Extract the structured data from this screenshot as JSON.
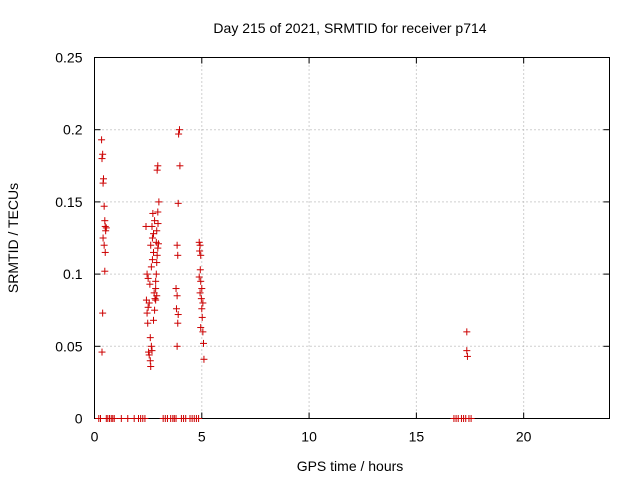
{
  "chart_data": {
    "type": "scatter",
    "title": "Day 215 of 2021, SRMTID for receiver p714",
    "xlabel": "GPS time / hours",
    "ylabel": "SRMTID / TECUs",
    "xlim": [
      0,
      24
    ],
    "ylim": [
      0,
      0.25
    ],
    "xticks": [
      0,
      5,
      10,
      15,
      20
    ],
    "xtick_labels": [
      "0",
      "5",
      "10",
      "15",
      "20"
    ],
    "yticks": [
      0,
      0.05,
      0.1,
      0.15,
      0.2,
      0.25
    ],
    "ytick_labels": [
      "0",
      "0.05",
      "0.1",
      "0.15",
      "0.2",
      "0.25"
    ],
    "grid": true,
    "marker": "+",
    "series": [
      {
        "name": "SRMTID",
        "color": "#cc0000",
        "points": [
          [
            0.33,
            0.193
          ],
          [
            0.35,
            0.18
          ],
          [
            0.38,
            0.183
          ],
          [
            0.4,
            0.163
          ],
          [
            0.42,
            0.166
          ],
          [
            0.45,
            0.147
          ],
          [
            0.48,
            0.137
          ],
          [
            0.5,
            0.133
          ],
          [
            0.52,
            0.13
          ],
          [
            0.55,
            0.132
          ],
          [
            0.4,
            0.125
          ],
          [
            0.45,
            0.12
          ],
          [
            0.5,
            0.115
          ],
          [
            0.48,
            0.102
          ],
          [
            0.38,
            0.073
          ],
          [
            0.35,
            0.046
          ],
          [
            2.4,
            0.133
          ],
          [
            2.45,
            0.1
          ],
          [
            2.5,
            0.097
          ],
          [
            2.42,
            0.082
          ],
          [
            2.55,
            0.08
          ],
          [
            2.5,
            0.077
          ],
          [
            2.45,
            0.073
          ],
          [
            2.48,
            0.066
          ],
          [
            2.52,
            0.046
          ],
          [
            2.55,
            0.044
          ],
          [
            2.6,
            0.04
          ],
          [
            2.62,
            0.036
          ],
          [
            2.6,
            0.056
          ],
          [
            2.65,
            0.05
          ],
          [
            2.68,
            0.047
          ],
          [
            2.58,
            0.093
          ],
          [
            2.65,
            0.105
          ],
          [
            2.7,
            0.11
          ],
          [
            2.75,
            0.115
          ],
          [
            2.62,
            0.12
          ],
          [
            2.7,
            0.125
          ],
          [
            2.75,
            0.128
          ],
          [
            2.68,
            0.133
          ],
          [
            2.8,
            0.137
          ],
          [
            2.72,
            0.142
          ],
          [
            2.78,
            0.087
          ],
          [
            2.82,
            0.083
          ],
          [
            2.85,
            0.09
          ],
          [
            2.8,
            0.075
          ],
          [
            2.75,
            0.068
          ],
          [
            2.85,
            0.095
          ],
          [
            2.88,
            0.1
          ],
          [
            2.9,
            0.108
          ],
          [
            2.92,
            0.113
          ],
          [
            2.95,
            0.118
          ],
          [
            2.98,
            0.121
          ],
          [
            2.9,
            0.13
          ],
          [
            2.95,
            0.143
          ],
          [
            3.0,
            0.15
          ],
          [
            2.92,
            0.172
          ],
          [
            2.95,
            0.175
          ],
          [
            2.85,
            0.082
          ],
          [
            2.9,
            0.085
          ],
          [
            2.88,
            0.122
          ],
          [
            2.96,
            0.135
          ],
          [
            3.92,
            0.197
          ],
          [
            3.96,
            0.2
          ],
          [
            3.98,
            0.175
          ],
          [
            3.9,
            0.149
          ],
          [
            3.85,
            0.12
          ],
          [
            3.88,
            0.113
          ],
          [
            3.8,
            0.09
          ],
          [
            3.85,
            0.085
          ],
          [
            3.82,
            0.076
          ],
          [
            3.9,
            0.072
          ],
          [
            3.88,
            0.066
          ],
          [
            3.85,
            0.05
          ],
          [
            4.88,
            0.122
          ],
          [
            4.92,
            0.12
          ],
          [
            4.9,
            0.116
          ],
          [
            4.95,
            0.113
          ],
          [
            4.93,
            0.103
          ],
          [
            4.88,
            0.098
          ],
          [
            4.95,
            0.095
          ],
          [
            5.0,
            0.09
          ],
          [
            4.92,
            0.087
          ],
          [
            4.98,
            0.083
          ],
          [
            5.05,
            0.08
          ],
          [
            5.0,
            0.076
          ],
          [
            5.02,
            0.07
          ],
          [
            4.95,
            0.063
          ],
          [
            5.05,
            0.06
          ],
          [
            5.08,
            0.052
          ],
          [
            5.1,
            0.041
          ],
          [
            17.35,
            0.06
          ],
          [
            17.35,
            0.047
          ],
          [
            17.38,
            0.043
          ],
          [
            0.2,
            0
          ],
          [
            0.28,
            0
          ],
          [
            0.55,
            0
          ],
          [
            0.62,
            0
          ],
          [
            0.7,
            0
          ],
          [
            0.78,
            0
          ],
          [
            0.85,
            0
          ],
          [
            0.92,
            0
          ],
          [
            1.25,
            0
          ],
          [
            1.55,
            0
          ],
          [
            1.85,
            0
          ],
          [
            2.05,
            0
          ],
          [
            2.15,
            0
          ],
          [
            2.25,
            0
          ],
          [
            2.35,
            0
          ],
          [
            3.2,
            0
          ],
          [
            3.3,
            0
          ],
          [
            3.4,
            0
          ],
          [
            3.55,
            0
          ],
          [
            3.65,
            0
          ],
          [
            3.72,
            0
          ],
          [
            3.8,
            0
          ],
          [
            4.05,
            0
          ],
          [
            4.15,
            0
          ],
          [
            4.25,
            0
          ],
          [
            4.45,
            0
          ],
          [
            4.55,
            0
          ],
          [
            4.65,
            0
          ],
          [
            4.75,
            0
          ],
          [
            4.85,
            0
          ],
          [
            16.75,
            0
          ],
          [
            16.85,
            0
          ],
          [
            16.95,
            0
          ],
          [
            17.1,
            0
          ],
          [
            17.2,
            0
          ],
          [
            17.3,
            0
          ],
          [
            17.45,
            0
          ],
          [
            17.55,
            0
          ]
        ]
      }
    ]
  }
}
